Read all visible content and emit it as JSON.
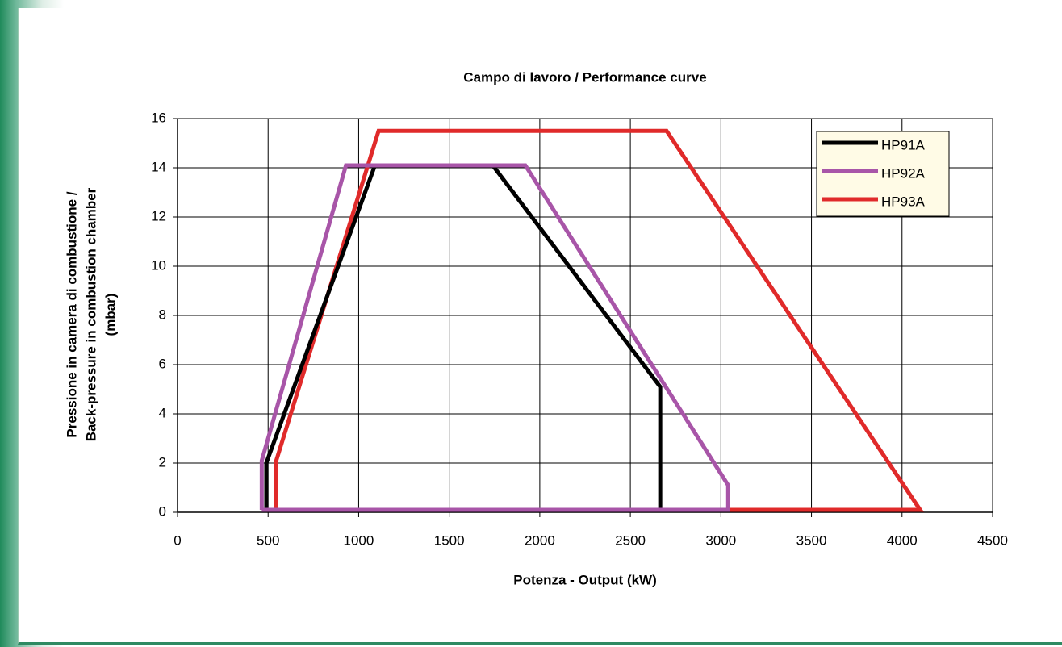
{
  "chart_data": {
    "type": "line",
    "title": "Campo di lavoro / Performance curve",
    "xlabel": "Potenza - Output (kW)",
    "ylabel": [
      "Pressione in camera di combustione /",
      "Back-pressure in combustion chamber",
      "(mbar)"
    ],
    "xlim": [
      0,
      4500
    ],
    "xticks": [
      0,
      500,
      1000,
      1500,
      2000,
      2500,
      3000,
      3500,
      4000,
      4500
    ],
    "ylim": [
      0,
      16
    ],
    "yticks": [
      0,
      2,
      4,
      6,
      8,
      10,
      12,
      14,
      16
    ],
    "grid": true,
    "legend": "upper right",
    "series": [
      {
        "name": "HP91A",
        "color": "#000000",
        "x": [
          490,
          490,
          1090,
          1740,
          2665,
          2665,
          490
        ],
        "values": [
          0.1,
          2,
          14.1,
          14.1,
          5.1,
          0.1,
          0.1
        ]
      },
      {
        "name": "HP92A",
        "color": "#a855a8",
        "x": [
          465,
          465,
          930,
          1920,
          3040,
          3040,
          465
        ],
        "values": [
          0.1,
          2.1,
          14.1,
          14.1,
          1.1,
          0.1,
          0.1
        ]
      },
      {
        "name": "HP93A",
        "color": "#e02a2a",
        "x": [
          545,
          545,
          1110,
          2700,
          4100,
          545
        ],
        "values": [
          0.1,
          2.1,
          15.5,
          15.5,
          0.1,
          0.1
        ]
      }
    ]
  }
}
